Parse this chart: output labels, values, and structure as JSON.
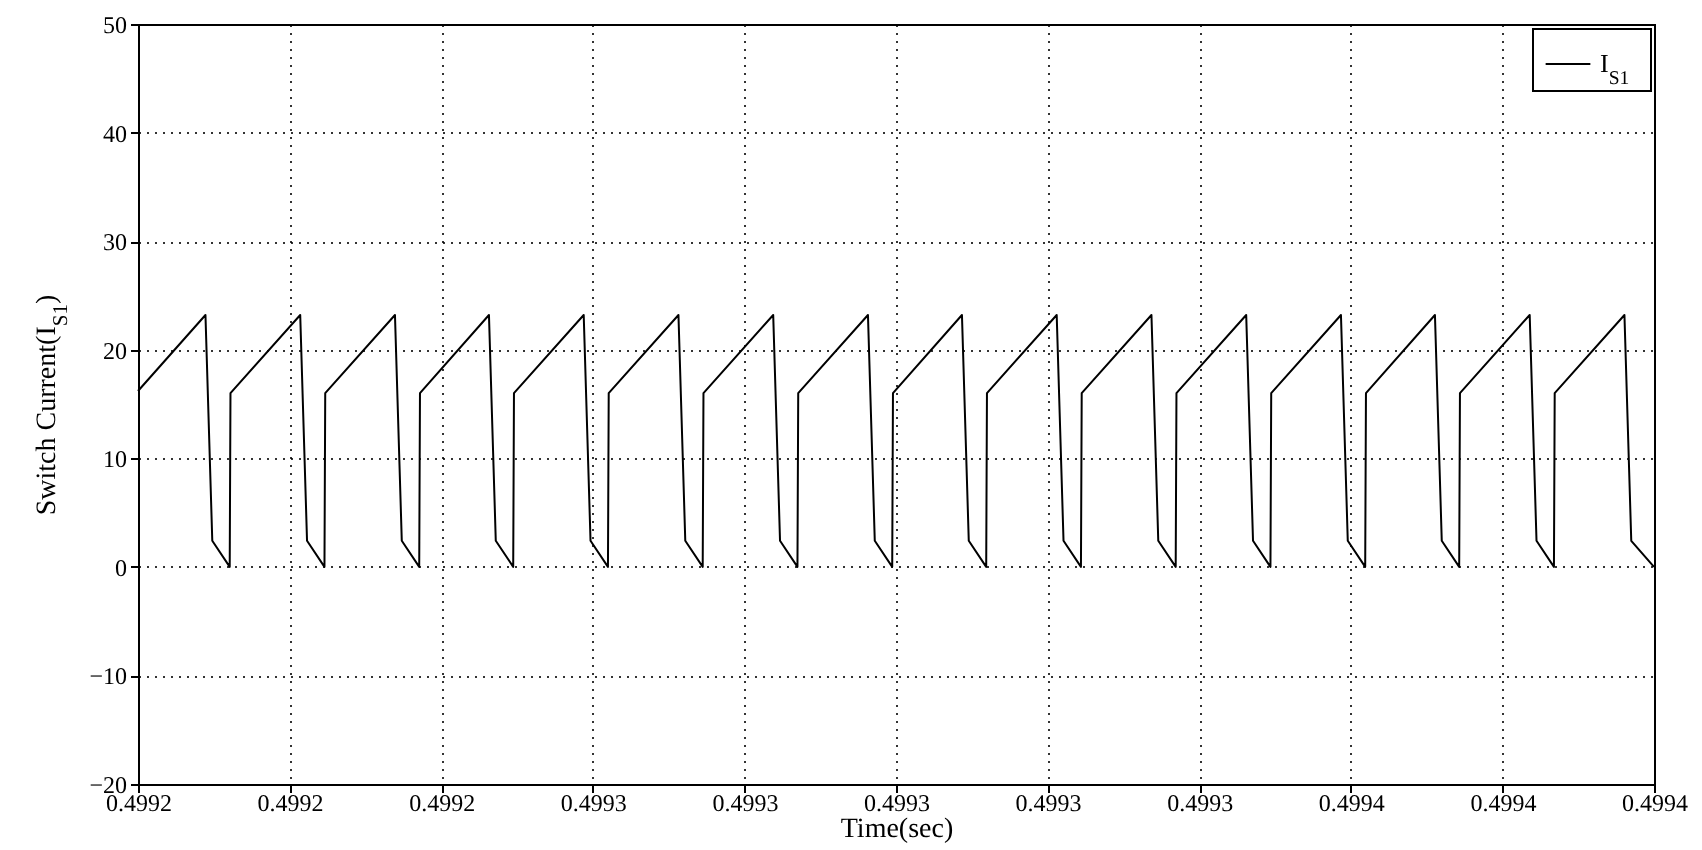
{
  "chart_data": {
    "type": "line",
    "xlabel": "Time(sec)",
    "ylabel": "Switch Current(I$_{S1}$)",
    "xlim": [
      0.4992,
      0.4994
    ],
    "xticks": [
      {
        "value": 0.4992,
        "label": "0.4992"
      },
      {
        "value": 0.49922,
        "label": "0.4992"
      },
      {
        "value": 0.49924,
        "label": "0.4992"
      },
      {
        "value": 0.49926,
        "label": "0.4993"
      },
      {
        "value": 0.49928,
        "label": "0.4993"
      },
      {
        "value": 0.4993,
        "label": "0.4993"
      },
      {
        "value": 0.49932,
        "label": "0.4993"
      },
      {
        "value": 0.49934,
        "label": "0.4993"
      },
      {
        "value": 0.49936,
        "label": "0.4994"
      },
      {
        "value": 0.49938,
        "label": "0.4994"
      },
      {
        "value": 0.4994,
        "label": "0.4994"
      }
    ],
    "ylim": [
      -20,
      50
    ],
    "yticks": [
      -20,
      -10,
      0,
      10,
      20,
      30,
      40,
      50
    ],
    "grid": true,
    "legend": "top right",
    "series": [
      {
        "name": "I$_{S1}$",
        "color": "#000000",
        "x": [
          0.4992,
          0.4992089,
          0.4992098,
          0.4992121,
          0.4992122,
          0.4992214,
          0.4992223,
          0.4992246,
          0.4992247,
          0.4992339,
          0.4992348,
          0.4992371,
          0.4992372,
          0.4992463,
          0.4992472,
          0.4992495,
          0.4992496,
          0.4992588,
          0.4992597,
          0.499262,
          0.4992621,
          0.4992713,
          0.4992722,
          0.4992745,
          0.4992746,
          0.4992838,
          0.4992847,
          0.499287,
          0.4992871,
          0.4992963,
          0.4992972,
          0.4992995,
          0.4992996,
          0.4993087,
          0.4993096,
          0.4993119,
          0.499312,
          0.4993212,
          0.4993221,
          0.4993244,
          0.4993245,
          0.4993337,
          0.4993346,
          0.4993369,
          0.499337,
          0.4993462,
          0.4993471,
          0.4993494,
          0.4993495,
          0.4993587,
          0.4993596,
          0.4993619,
          0.499362,
          0.4993711,
          0.499372,
          0.4993743,
          0.4993744,
          0.4993836,
          0.4993845,
          0.4993868,
          0.4993869,
          0.4993961,
          0.499397,
          0.4994
        ],
        "values": [
          16.2,
          23.2,
          2.4,
          0,
          16,
          23.2,
          2.4,
          0,
          16,
          23.2,
          2.4,
          0,
          16,
          23.2,
          2.4,
          0,
          16,
          23.2,
          2.4,
          0,
          16,
          23.2,
          2.4,
          0,
          16,
          23.2,
          2.4,
          0,
          16,
          23.2,
          2.4,
          0,
          16,
          23.2,
          2.4,
          0,
          16,
          23.2,
          2.4,
          0,
          16,
          23.2,
          2.4,
          0,
          16,
          23.2,
          2.4,
          0,
          16,
          23.2,
          2.4,
          0,
          16,
          23.2,
          2.4,
          0,
          16,
          23.2,
          2.4,
          0,
          16,
          23.2,
          2.4,
          0
        ]
      }
    ]
  }
}
